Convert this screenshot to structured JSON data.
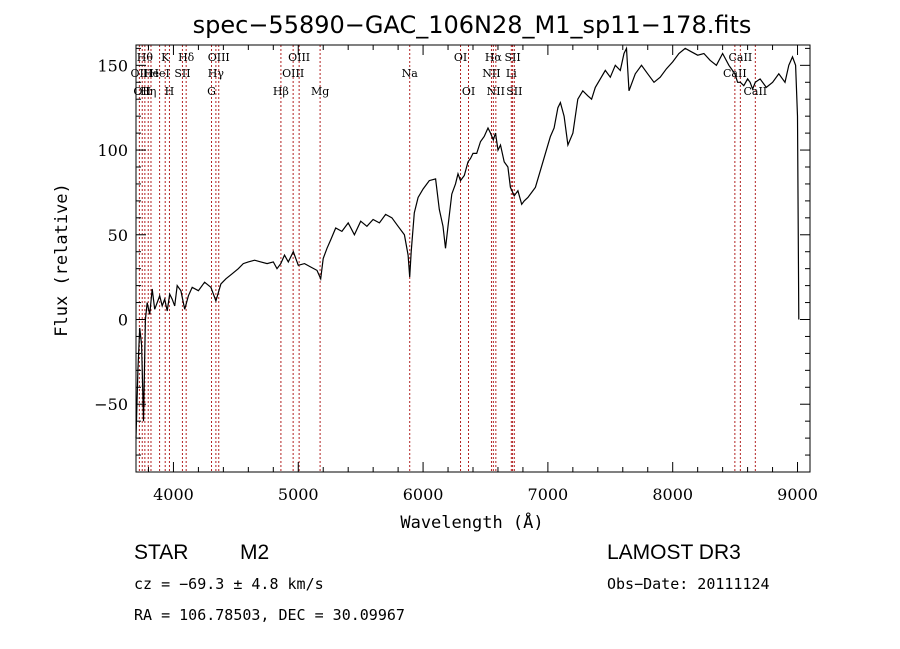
{
  "chart_data": {
    "type": "line",
    "title": "spec−55890−GAC_106N28_M1_sp11−178.fits",
    "xlabel": "Wavelength (Å)",
    "ylabel": "Flux (relative)",
    "xlim": [
      3700,
      9100
    ],
    "ylim": [
      -90,
      162
    ],
    "xticks": [
      4000,
      5000,
      6000,
      7000,
      8000,
      9000
    ],
    "yticks": [
      -50,
      0,
      50,
      100,
      150
    ],
    "xticklabels": [
      "4000",
      "5000",
      "6000",
      "7000",
      "8000",
      "9000"
    ],
    "yticklabels": [
      "−50",
      "0",
      "50",
      "100",
      "150"
    ],
    "series": [
      {
        "name": "spectrum",
        "x": [
          3700,
          3715,
          3730,
          3745,
          3760,
          3775,
          3790,
          3810,
          3830,
          3850,
          3870,
          3890,
          3910,
          3930,
          3950,
          3970,
          3990,
          4010,
          4030,
          4060,
          4090,
          4120,
          4150,
          4200,
          4250,
          4300,
          4340,
          4380,
          4420,
          4470,
          4520,
          4560,
          4600,
          4650,
          4700,
          4750,
          4800,
          4830,
          4860,
          4890,
          4920,
          4960,
          5000,
          5050,
          5100,
          5150,
          5180,
          5200,
          5230,
          5260,
          5300,
          5350,
          5400,
          5450,
          5500,
          5550,
          5600,
          5650,
          5700,
          5750,
          5800,
          5850,
          5880,
          5893,
          5905,
          5930,
          5960,
          6000,
          6050,
          6100,
          6130,
          6160,
          6180,
          6200,
          6230,
          6260,
          6280,
          6300,
          6330,
          6360,
          6380,
          6400,
          6430,
          6460,
          6490,
          6520,
          6540,
          6563,
          6580,
          6600,
          6620,
          6650,
          6680,
          6700,
          6730,
          6760,
          6790,
          6810,
          6840,
          6870,
          6900,
          6940,
          6980,
          7020,
          7050,
          7080,
          7100,
          7130,
          7160,
          7200,
          7240,
          7280,
          7320,
          7350,
          7380,
          7420,
          7460,
          7500,
          7540,
          7580,
          7610,
          7630,
          7650,
          7700,
          7750,
          7800,
          7850,
          7900,
          7950,
          8000,
          8050,
          8100,
          8150,
          8200,
          8250,
          8300,
          8350,
          8400,
          8450,
          8498,
          8520,
          8542,
          8570,
          8600,
          8620,
          8640,
          8662,
          8700,
          8750,
          8800,
          8850,
          8900,
          8930,
          8960,
          8985,
          9000,
          9010
        ],
        "values": [
          -70,
          -30,
          -5,
          -15,
          -60,
          0,
          10,
          3,
          18,
          6,
          10,
          14,
          8,
          12,
          5,
          15,
          12,
          8,
          20,
          17,
          6,
          14,
          19,
          17,
          22,
          19,
          11,
          21,
          24,
          27,
          30,
          33,
          34,
          35,
          34,
          33,
          34,
          30,
          33,
          38,
          34,
          40,
          32,
          33,
          31,
          29,
          24,
          36,
          42,
          47,
          54,
          52,
          57,
          50,
          58,
          55,
          59,
          57,
          62,
          60,
          55,
          50,
          38,
          25,
          40,
          63,
          72,
          77,
          82,
          83,
          65,
          55,
          42,
          55,
          74,
          80,
          86,
          82,
          85,
          93,
          95,
          98,
          98,
          105,
          108,
          113,
          110,
          106,
          110,
          100,
          103,
          93,
          90,
          78,
          73,
          76,
          68,
          70,
          72,
          75,
          78,
          88,
          98,
          108,
          113,
          125,
          128,
          120,
          103,
          110,
          130,
          135,
          132,
          130,
          137,
          142,
          147,
          143,
          150,
          147,
          157,
          160,
          135,
          145,
          150,
          145,
          140,
          143,
          148,
          152,
          157,
          160,
          158,
          156,
          157,
          153,
          150,
          157,
          150,
          145,
          140,
          140,
          138,
          142,
          140,
          136,
          140,
          142,
          137,
          140,
          145,
          140,
          150,
          155,
          150,
          120,
          0
        ]
      }
    ],
    "line_markers": [
      {
        "x": 3727,
        "label": "OII",
        "row": 2
      },
      {
        "x": 3750,
        "label": "OII",
        "row": 3
      },
      {
        "x": 3771,
        "label": "Hθ",
        "row": 1
      },
      {
        "x": 3798,
        "label": "Hη",
        "row": 3
      },
      {
        "x": 3820,
        "label": "He",
        "row": 2
      },
      {
        "x": 3889,
        "label": "HeI",
        "row": 2
      },
      {
        "x": 3934,
        "label": "K",
        "row": 1
      },
      {
        "x": 3968,
        "label": "H",
        "row": 3
      },
      {
        "x": 4072,
        "label": "SII",
        "row": 2
      },
      {
        "x": 4102,
        "label": "Hδ",
        "row": 1
      },
      {
        "x": 4305,
        "label": "G",
        "row": 3
      },
      {
        "x": 4340,
        "label": "Hγ",
        "row": 2
      },
      {
        "x": 4363,
        "label": "OIII",
        "row": 1
      },
      {
        "x": 4861,
        "label": "Hβ",
        "row": 3
      },
      {
        "x": 4959,
        "label": "OIII",
        "row": 2
      },
      {
        "x": 5007,
        "label": "OIII",
        "row": 1
      },
      {
        "x": 5175,
        "label": "Mg",
        "row": 3
      },
      {
        "x": 5893,
        "label": "Na",
        "row": 2
      },
      {
        "x": 6300,
        "label": "OI",
        "row": 1
      },
      {
        "x": 6364,
        "label": "OI",
        "row": 3
      },
      {
        "x": 6548,
        "label": "NII",
        "row": 2
      },
      {
        "x": 6563,
        "label": "Hα",
        "row": 1
      },
      {
        "x": 6583,
        "label": "NII",
        "row": 3
      },
      {
        "x": 6707,
        "label": "Li",
        "row": 2
      },
      {
        "x": 6717,
        "label": "SII",
        "row": 1
      },
      {
        "x": 6731,
        "label": "SII",
        "row": 3
      },
      {
        "x": 8498,
        "label": "CaII",
        "row": 2
      },
      {
        "x": 8542,
        "label": "CaII",
        "row": 1
      },
      {
        "x": 8662,
        "label": "CaII",
        "row": 3
      }
    ]
  },
  "info": {
    "class": "STAR",
    "subclass": "M2",
    "survey": "LAMOST DR3",
    "cz": "cz = −69.3 ± 4.8 km/s",
    "obs_date": "Obs−Date: 20111124",
    "coords": "RA = 106.78503, DEC =  30.09967"
  },
  "colors": {
    "line_marker": "#b22222",
    "spectrum": "#000000",
    "axes": "#000000"
  }
}
